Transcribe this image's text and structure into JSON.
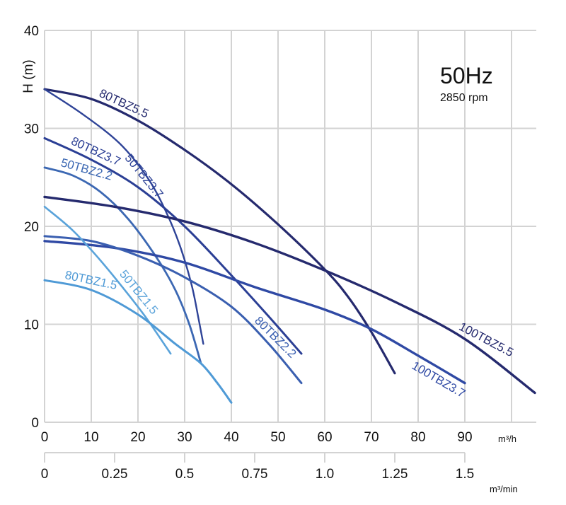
{
  "chart_data": {
    "type": "line",
    "title": "50Hz",
    "subtitle": "2850 rpm",
    "xlabel": "m³/h",
    "x2label": "m³/min",
    "ylabel": "H (m)",
    "xlim": [
      0,
      105
    ],
    "ylim": [
      0,
      40
    ],
    "grid": true,
    "x_ticks": [
      "0",
      "10",
      "20",
      "30",
      "40",
      "50",
      "60",
      "70",
      "80",
      "90"
    ],
    "x_tick_values": [
      0,
      10,
      20,
      30,
      40,
      50,
      60,
      70,
      80,
      90
    ],
    "x2_ticks": [
      "0",
      "0.25",
      "0.5",
      "0.75",
      "1.0",
      "1.25",
      "1.5"
    ],
    "x2_tick_values": [
      0,
      0.25,
      0.5,
      0.75,
      1.0,
      1.25,
      1.5
    ],
    "y_ticks": [
      "0",
      "10",
      "20",
      "30",
      "40"
    ],
    "y_tick_values": [
      0,
      10,
      20,
      30,
      40
    ],
    "series": [
      {
        "name": "80TBZ5.5",
        "color": "#252a6e",
        "width": 3.2,
        "points": [
          [
            0,
            34
          ],
          [
            10,
            33
          ],
          [
            20,
            30.8
          ],
          [
            30,
            27.8
          ],
          [
            40,
            24.3
          ],
          [
            50,
            20.2
          ],
          [
            60,
            15.6
          ],
          [
            65,
            12.8
          ],
          [
            70,
            9.2
          ],
          [
            75,
            5
          ]
        ],
        "label_at": 11,
        "label_offset": -8
      },
      {
        "name": "50TBZ3.7",
        "color": "#2e4397",
        "width": 2.4,
        "points": [
          [
            0,
            34
          ],
          [
            8,
            31.5
          ],
          [
            16,
            28.5
          ],
          [
            22,
            25
          ],
          [
            26,
            21.5
          ],
          [
            29,
            18
          ],
          [
            31.5,
            14
          ],
          [
            33,
            10.5
          ],
          [
            34,
            8
          ]
        ],
        "label_at": 18,
        "label_offset": 8
      },
      {
        "name": "80TBZ3.7",
        "color": "#2b3f95",
        "width": 3,
        "points": [
          [
            0,
            29
          ],
          [
            10,
            26.8
          ],
          [
            20,
            24
          ],
          [
            30,
            20
          ],
          [
            40,
            15
          ],
          [
            48,
            10.8
          ],
          [
            55,
            7
          ]
        ],
        "label_at": 5,
        "label_offset": -8
      },
      {
        "name": "50TBZ2.2",
        "color": "#3c68b3",
        "width": 2.8,
        "points": [
          [
            0,
            26
          ],
          [
            6,
            25.2
          ],
          [
            12,
            23.5
          ],
          [
            18,
            20.7
          ],
          [
            24,
            16.8
          ],
          [
            28,
            13.5
          ],
          [
            31,
            10
          ],
          [
            33.5,
            6
          ]
        ],
        "label_at": 3,
        "label_offset": -8
      },
      {
        "name": "100TBZ5.5",
        "color": "#252a6e",
        "width": 3.4,
        "points": [
          [
            0,
            23
          ],
          [
            15,
            22
          ],
          [
            30,
            20.5
          ],
          [
            45,
            18.3
          ],
          [
            60,
            15.5
          ],
          [
            75,
            12.3
          ],
          [
            90,
            8.5
          ],
          [
            105,
            3
          ]
        ],
        "label_at": 88,
        "label_offset": -8
      },
      {
        "name": "100TBZ3.7",
        "color": "#2f49a4",
        "width": 3.4,
        "points": [
          [
            0,
            18.5
          ],
          [
            15,
            17.8
          ],
          [
            30,
            16.3
          ],
          [
            45,
            13.8
          ],
          [
            60,
            11.5
          ],
          [
            70,
            9.5
          ],
          [
            80,
            6.8
          ],
          [
            90,
            4
          ]
        ],
        "label_at": 80,
        "label_offset": 20
      },
      {
        "name": "80TBZ2.2",
        "color": "#3a5fb0",
        "width": 3,
        "points": [
          [
            0,
            19
          ],
          [
            10,
            18.5
          ],
          [
            20,
            17
          ],
          [
            30,
            14.8
          ],
          [
            40,
            11.8
          ],
          [
            48,
            8
          ],
          [
            55,
            4
          ]
        ],
        "label_at": 44,
        "label_offset": -8
      },
      {
        "name": "50TBZ1.5",
        "color": "#5aa3da",
        "width": 2.6,
        "points": [
          [
            0,
            22
          ],
          [
            6,
            19.6
          ],
          [
            12,
            16.5
          ],
          [
            18,
            13
          ],
          [
            22,
            10.5
          ],
          [
            27,
            7
          ]
        ],
        "label_at": 15,
        "label_offset": -8
      },
      {
        "name": "80TBZ1.5",
        "color": "#4f9ad6",
        "width": 3,
        "points": [
          [
            0,
            14.5
          ],
          [
            10,
            13.5
          ],
          [
            20,
            11
          ],
          [
            28,
            8
          ],
          [
            33.5,
            6
          ],
          [
            37,
            4
          ],
          [
            40,
            2
          ]
        ],
        "label_at": 4,
        "label_offset": -8
      }
    ]
  }
}
